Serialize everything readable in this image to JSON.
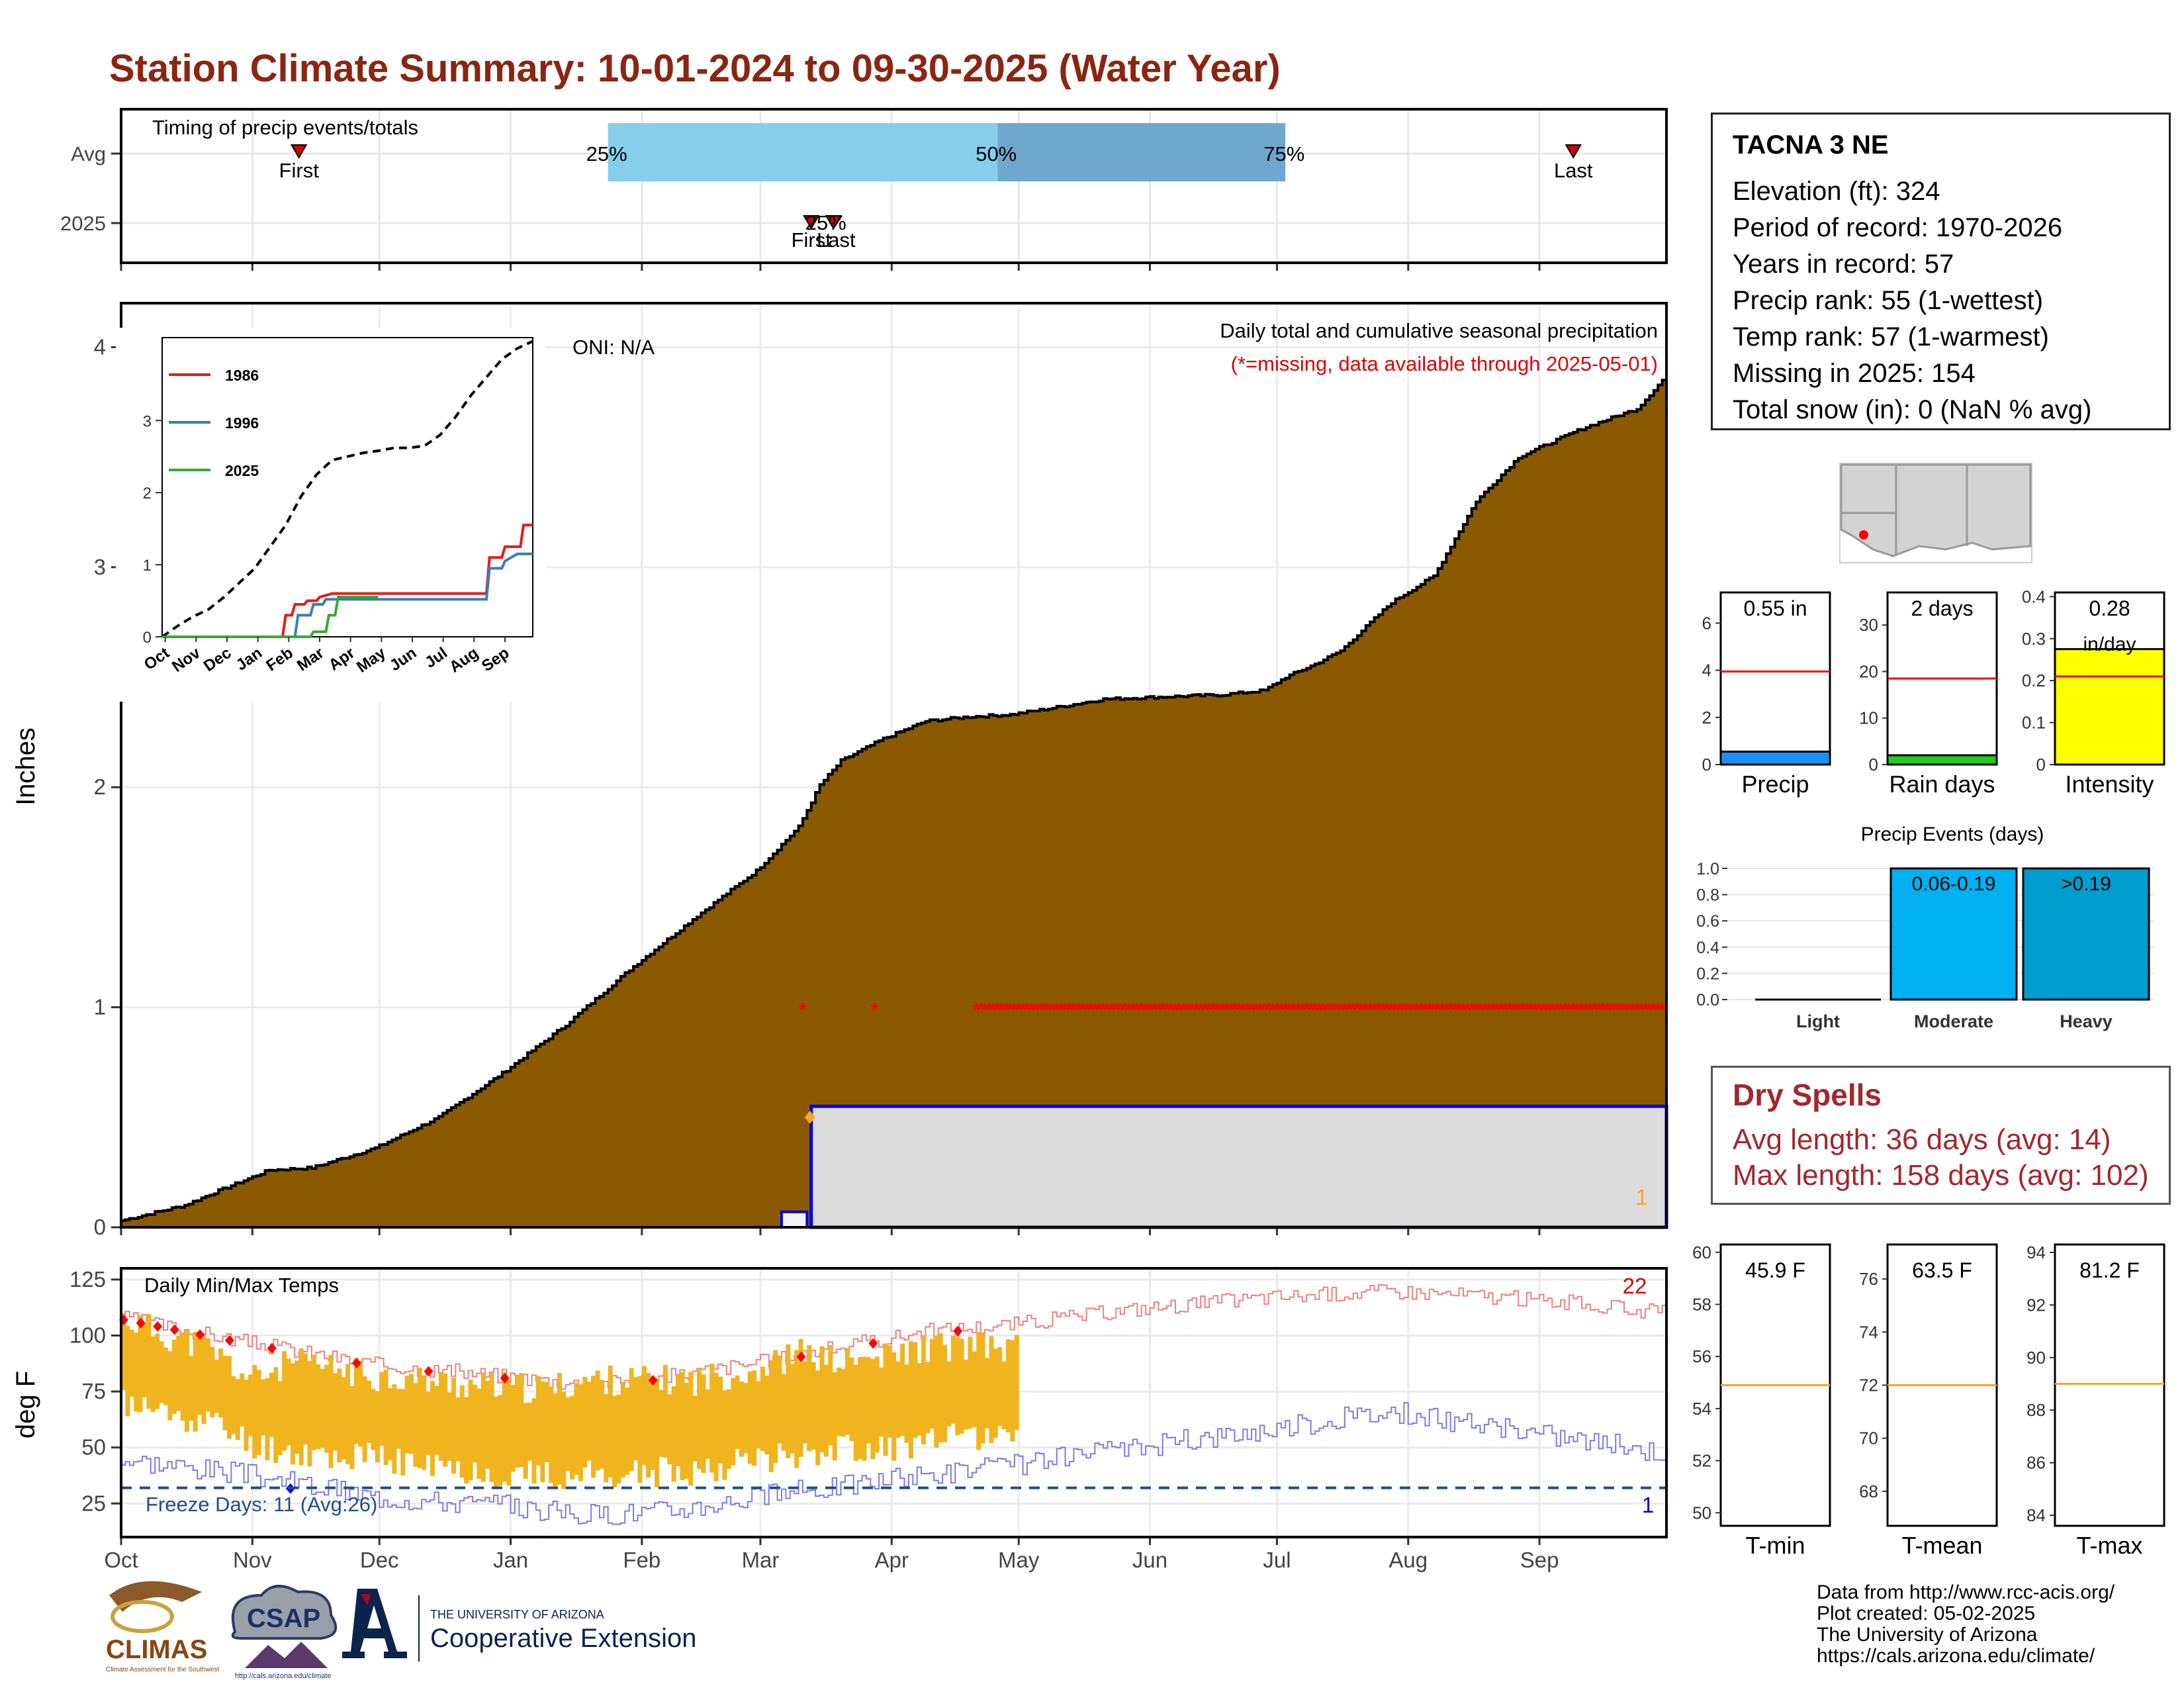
{
  "title": "Station Climate Summary: 10-01-2024 to 09-30-2025 (Water Year)",
  "colors": {
    "title": "#8b2511",
    "precip_fill": "#8b5a00",
    "normal_box": "#dcdcdc",
    "normal_line": "#0000ee",
    "missing": "#ff0000",
    "q_light": "#87ceeb",
    "q_dark": "#6fa8cc",
    "temp_bar": "#f0b41e",
    "tmax_line": "#f08080",
    "tmin_line": "#7b7be8",
    "freeze_line": "#1f4e8c",
    "rank_line": "#ff0000",
    "precip_bar": "#1e90ff",
    "rain_bar": "#22cc22",
    "intensity_bar": "#ffff00",
    "moderate_bar": "#00b0f0",
    "heavy_bar": "#009ecf",
    "avg_line_orange": "#f5a623"
  },
  "timing_panel": {
    "label": "Timing of precip events/totals",
    "rows": [
      "Avg",
      "2025"
    ],
    "avg": {
      "first": "First",
      "last": "Last",
      "q25": "25%",
      "q50": "50%",
      "q75": "75%",
      "first_day": 42,
      "q25_day": 115,
      "q50_day": 207,
      "q75_day": 275,
      "last_day": 343
    },
    "y2025": {
      "first": "First",
      "last": "Last",
      "q": "25%",
      "first_day": 163,
      "last_day": 167
    }
  },
  "main_panel": {
    "ylabel": "Inches",
    "ylim": [
      0,
      4.2
    ],
    "yticks": [
      0,
      1,
      2,
      3,
      4
    ],
    "text_oni": "ONI: N/A",
    "text_right1": "Daily total and cumulative seasonal precipitation",
    "text_right2": "(*=missing, data available through 2025-05-01)",
    "count_label": "1",
    "cumulative_normal_keys": {
      "day": [
        0,
        15,
        21,
        35,
        45,
        60,
        75,
        90,
        105,
        120,
        135,
        150,
        160,
        165,
        170,
        180,
        190,
        200,
        210,
        220,
        232,
        245,
        260,
        270,
        275,
        282,
        288,
        300,
        310,
        320,
        330,
        345,
        358,
        364
      ],
      "value": [
        0.03,
        0.1,
        0.15,
        0.26,
        0.27,
        0.36,
        0.5,
        0.7,
        0.92,
        1.17,
        1.4,
        1.62,
        1.82,
        2.01,
        2.12,
        2.22,
        2.3,
        2.32,
        2.33,
        2.36,
        2.4,
        2.41,
        2.42,
        2.44,
        2.5,
        2.56,
        2.62,
        2.84,
        2.96,
        3.3,
        3.5,
        3.63,
        3.72,
        3.85
      ]
    },
    "season_2025": {
      "small_start_day": 156,
      "small_end_day": 162,
      "small_value": 0.07,
      "step_day": 163,
      "step_value": 0.55,
      "diamond_value": 0.5
    },
    "missing_days_single": [
      161,
      178
    ],
    "missing_range": [
      202,
      364
    ],
    "missing_value": 1.0
  },
  "inset": {
    "yticks": [
      0,
      1,
      2,
      3
    ],
    "xlabels": [
      "Oct",
      "Nov",
      "Dec",
      "Jan",
      "Feb",
      "Mar",
      "Apr",
      "May",
      "Jun",
      "Jul",
      "Aug",
      "Sep"
    ],
    "legend": [
      "1986",
      "1996",
      "2025"
    ],
    "legend_colors": [
      "#e41a1c",
      "#377eb8",
      "#33aa33"
    ],
    "dashed_keys": {
      "x": [
        0,
        0.5,
        1,
        1.5,
        2,
        2.5,
        3,
        3.5,
        4,
        4.5,
        5,
        5.5,
        6,
        6.5,
        7,
        7.5,
        8,
        8.5,
        9,
        9.5,
        10,
        10.5,
        11,
        11.5,
        12
      ],
      "y": [
        0,
        0.15,
        0.28,
        0.38,
        0.55,
        0.75,
        0.95,
        1.25,
        1.55,
        1.95,
        2.25,
        2.45,
        2.5,
        2.55,
        2.58,
        2.62,
        2.62,
        2.65,
        2.8,
        3.05,
        3.35,
        3.6,
        3.85,
        4.0,
        4.1
      ]
    },
    "series_1986": {
      "x": [
        0,
        3.9,
        4.0,
        4.2,
        4.3,
        4.6,
        4.7,
        5.0,
        5.1,
        5.5,
        10.5,
        10.6,
        11.0,
        11.1,
        11.6,
        11.7,
        12
      ],
      "y": [
        0,
        0,
        0.3,
        0.3,
        0.45,
        0.45,
        0.5,
        0.5,
        0.55,
        0.6,
        0.6,
        1.1,
        1.1,
        1.25,
        1.25,
        1.55,
        1.55
      ]
    },
    "series_1996": {
      "x": [
        0,
        4.3,
        4.4,
        4.8,
        4.9,
        5.2,
        5.3,
        10.5,
        10.6,
        11.0,
        11.1,
        11.5,
        12
      ],
      "y": [
        0,
        0,
        0.3,
        0.3,
        0.45,
        0.45,
        0.52,
        0.52,
        0.95,
        0.95,
        1.05,
        1.15,
        1.15
      ]
    },
    "series_2025": {
      "x": [
        0,
        4.8,
        4.9,
        5.3,
        5.4,
        5.6,
        5.7,
        7.0
      ],
      "y": [
        0,
        0,
        0.07,
        0.07,
        0.3,
        0.3,
        0.55,
        0.55
      ]
    }
  },
  "temp_panel": {
    "label": "Daily Min/Max Temps",
    "ylabel": "deg F",
    "yticks": [
      25,
      50,
      75,
      100,
      125
    ],
    "ylim": [
      10,
      130
    ],
    "freeze_label": "Freeze Days: 11 (Avg:26)",
    "freeze_value": 32,
    "count_top": "22",
    "count_bottom": "1",
    "data_end_day": 212,
    "tmax_norm_keys": {
      "day": [
        0,
        30,
        60,
        90,
        110,
        130,
        150,
        170,
        190,
        210,
        240,
        270,
        300,
        320,
        340,
        364
      ],
      "value": [
        108,
        97,
        87,
        82,
        78,
        82,
        88,
        95,
        102,
        105,
        112,
        117,
        120,
        118,
        115,
        110
      ]
    },
    "tmin_norm_keys": {
      "day": [
        0,
        30,
        60,
        90,
        110,
        130,
        150,
        170,
        190,
        210,
        240,
        270,
        300,
        320,
        340,
        364
      ],
      "value": [
        45,
        38,
        28,
        24,
        20,
        22,
        28,
        33,
        38,
        42,
        50,
        58,
        66,
        60,
        55,
        48
      ]
    },
    "bar_upper_keys": {
      "day": [
        0,
        10,
        20,
        30,
        40,
        60,
        80,
        100,
        110,
        120,
        135,
        150,
        160,
        170,
        180,
        190,
        200,
        212
      ],
      "value": [
        108,
        100,
        95,
        80,
        88,
        82,
        78,
        76,
        80,
        80,
        80,
        85,
        92,
        88,
        90,
        95,
        95,
        94
      ]
    },
    "bar_lower_keys": {
      "day": [
        0,
        10,
        20,
        30,
        40,
        60,
        80,
        100,
        110,
        120,
        135,
        150,
        160,
        170,
        180,
        190,
        200,
        212
      ],
      "value": [
        70,
        65,
        62,
        52,
        48,
        45,
        40,
        37,
        38,
        38,
        40,
        45,
        48,
        50,
        50,
        52,
        55,
        58
      ]
    },
    "record_high_days": [
      0,
      4,
      8,
      12,
      18,
      25,
      35,
      55,
      72,
      90,
      125,
      160,
      177,
      197
    ],
    "record_low_day": 40
  },
  "months": [
    "Oct",
    "Nov",
    "Dec",
    "Jan",
    "Feb",
    "Mar",
    "Apr",
    "May",
    "Jun",
    "Jul",
    "Aug",
    "Sep"
  ],
  "station": {
    "name": "TACNA 3 NE",
    "elevation": "Elevation (ft): 324",
    "period": "Period of record: 1970-2026",
    "years": "Years in record: 57",
    "precip_rank": "Precip rank: 55 (1-wettest)",
    "temp_rank": "Temp rank: 57 (1-warmest)",
    "missing": "Missing in 2025: 154",
    "snow": "Total snow (in): 0 (NaN % avg)"
  },
  "mini_bars": [
    {
      "label": "Precip",
      "value_text": "0.55 in",
      "value": 0.55,
      "avg": 3.95,
      "ymax": 7.3,
      "yticks": [
        0,
        2,
        4,
        6
      ]
    },
    {
      "label": "Rain days",
      "value_text": "2 days",
      "value": 2,
      "avg": 18.5,
      "ymax": 37,
      "yticks": [
        0,
        10,
        20,
        30
      ]
    },
    {
      "label": "Intensity",
      "value_text": "0.28",
      "unit_text": "in/day",
      "value": 0.275,
      "avg": 0.21,
      "ymax": 0.41,
      "yticks": [
        0.0,
        0.1,
        0.2,
        0.3,
        0.4
      ]
    }
  ],
  "events": {
    "title": "Precip Events (days)",
    "categories": [
      "Light",
      "Moderate",
      "Heavy"
    ],
    "values": [
      0,
      1,
      1
    ],
    "bar_labels": [
      "",
      "0.06-0.19",
      ">0.19"
    ],
    "yticks": [
      0.0,
      0.2,
      0.4,
      0.6,
      0.8,
      1.0
    ]
  },
  "dry_spells": {
    "title": "Dry Spells",
    "avg": "Avg length: 36 days (avg: 14)",
    "max": "Max length: 158 days (avg: 102)"
  },
  "temp_mini": [
    {
      "label": "T-min",
      "value_text": "45.9 F",
      "avg": 54.9,
      "ymin": 49.5,
      "ymax": 60.3,
      "yticks": [
        50,
        52,
        54,
        56,
        58,
        60
      ]
    },
    {
      "label": "T-mean",
      "value_text": "63.5 F",
      "avg": 72.0,
      "ymin": 66.7,
      "ymax": 77.3,
      "yticks": [
        68,
        70,
        72,
        74,
        76
      ]
    },
    {
      "label": "T-max",
      "value_text": "81.2 F",
      "avg": 89.0,
      "ymin": 83.6,
      "ymax": 94.3,
      "yticks": [
        84,
        86,
        88,
        90,
        92,
        94
      ]
    }
  ],
  "footer": {
    "line1": "Data from http://www.rcc-acis.org/",
    "line2": "Plot created: 05-02-2025",
    "line3": "The University of Arizona",
    "line4": "https://cals.arizona.edu/climate/"
  },
  "logos": {
    "climas": "CLIMAS",
    "climas_sub": "Climate Assessment for the Southwest",
    "csap": "CSAP",
    "csap_url": "http://cals.arizona.edu/climate",
    "ua_small": "THE UNIVERSITY OF ARIZONA",
    "ua_big": "Cooperative Extension"
  }
}
